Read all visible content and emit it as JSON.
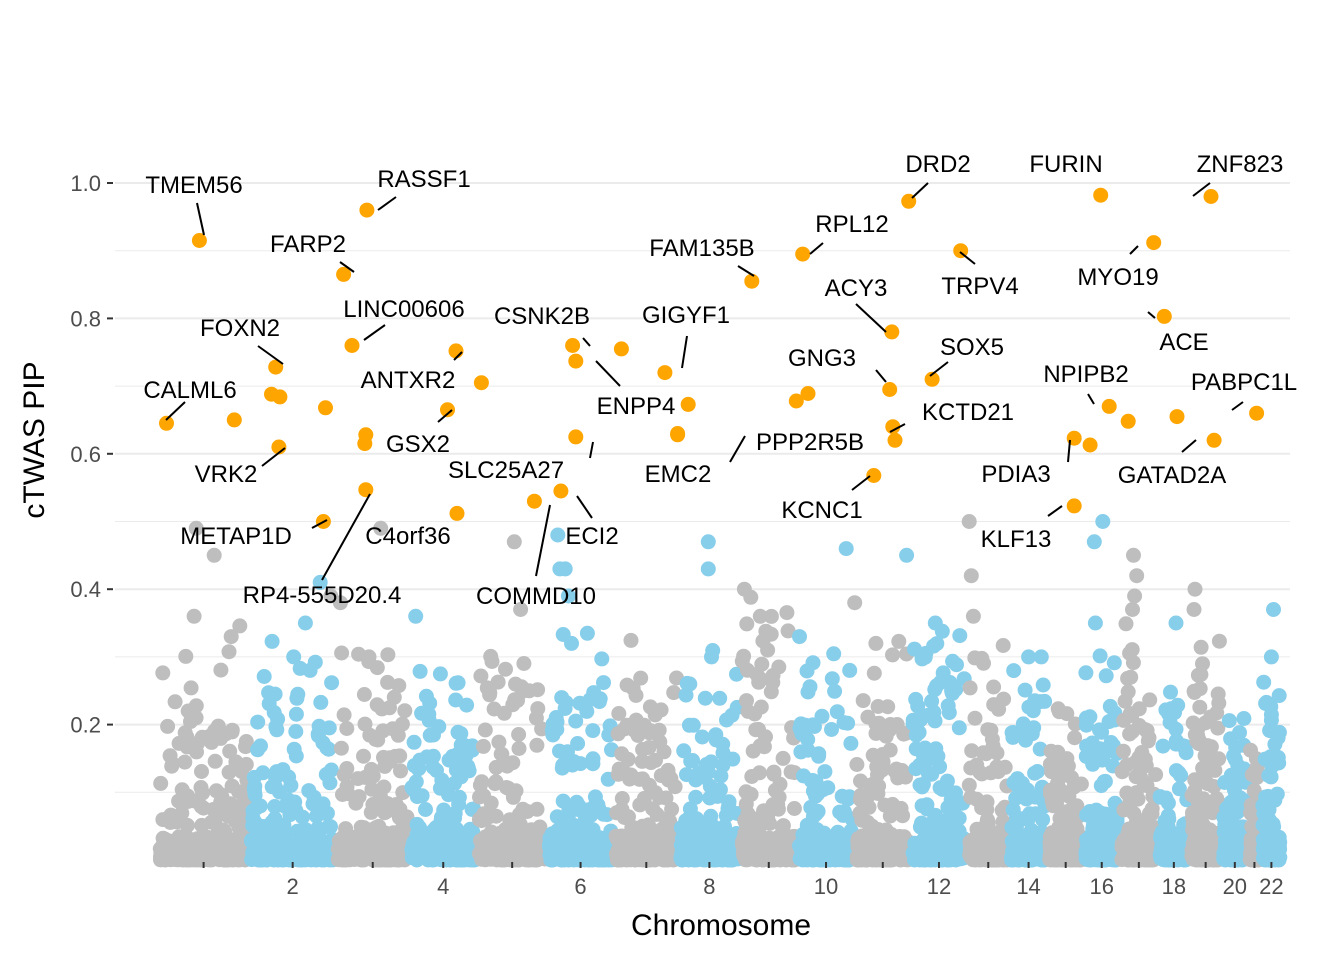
{
  "chart_data": {
    "type": "scatter",
    "title": "",
    "xlabel": "Chromosome",
    "ylabel": "cTWAS PIP",
    "ylim": [
      0,
      1.05
    ],
    "y_ticks": [
      0.2,
      0.4,
      0.6,
      0.8,
      1.0
    ],
    "y_tick_labels": [
      "0.2",
      "0.4",
      "0.6",
      "0.8",
      "1.0"
    ],
    "x_tick_labels": [
      "2",
      "4",
      "6",
      "8",
      "10",
      "12",
      "14",
      "16",
      "18",
      "20",
      "22"
    ],
    "grid": true,
    "legend": "none",
    "colors": {
      "odd_chromosome": "#bebebe",
      "even_chromosome": "#87ceeb",
      "highlight": "#ffa500",
      "gridline": "#ebebeb",
      "leader_line": "#000000"
    },
    "chromosomes": [
      {
        "chr": 1,
        "start": 0.0,
        "end": 8.6,
        "n": 190,
        "max_bg": 0.33
      },
      {
        "chr": 2,
        "start": 8.6,
        "end": 16.8,
        "n": 180,
        "max_bg": 0.3
      },
      {
        "chr": 3,
        "start": 16.8,
        "end": 23.7,
        "n": 160,
        "max_bg": 0.3
      },
      {
        "chr": 4,
        "start": 23.7,
        "end": 30.1,
        "n": 150,
        "max_bg": 0.26
      },
      {
        "chr": 5,
        "start": 30.1,
        "end": 36.7,
        "n": 150,
        "max_bg": 0.32
      },
      {
        "chr": 6,
        "start": 36.7,
        "end": 43.0,
        "n": 160,
        "max_bg": 0.3
      },
      {
        "chr": 7,
        "start": 43.0,
        "end": 49.1,
        "n": 150,
        "max_bg": 0.3
      },
      {
        "chr": 8,
        "start": 49.1,
        "end": 54.9,
        "n": 140,
        "max_bg": 0.3
      },
      {
        "chr": 9,
        "start": 54.9,
        "end": 60.3,
        "n": 140,
        "max_bg": 0.36
      },
      {
        "chr": 10,
        "start": 60.3,
        "end": 65.7,
        "n": 140,
        "max_bg": 0.3
      },
      {
        "chr": 11,
        "start": 65.7,
        "end": 71.0,
        "n": 150,
        "max_bg": 0.3
      },
      {
        "chr": 12,
        "start": 71.0,
        "end": 76.3,
        "n": 150,
        "max_bg": 0.35
      },
      {
        "chr": 13,
        "start": 76.3,
        "end": 80.3,
        "n": 100,
        "max_bg": 0.32
      },
      {
        "chr": 14,
        "start": 80.3,
        "end": 83.9,
        "n": 110,
        "max_bg": 0.25
      },
      {
        "chr": 15,
        "start": 83.9,
        "end": 87.3,
        "n": 110,
        "max_bg": 0.22
      },
      {
        "chr": 16,
        "start": 87.3,
        "end": 90.7,
        "n": 120,
        "max_bg": 0.28
      },
      {
        "chr": 17,
        "start": 90.7,
        "end": 94.3,
        "n": 130,
        "max_bg": 0.32
      },
      {
        "chr": 18,
        "start": 94.3,
        "end": 97.3,
        "n": 90,
        "max_bg": 0.24
      },
      {
        "chr": 19,
        "start": 97.3,
        "end": 100.3,
        "n": 120,
        "max_bg": 0.3
      },
      {
        "chr": 20,
        "start": 100.3,
        "end": 102.8,
        "n": 90,
        "max_bg": 0.24
      },
      {
        "chr": 21,
        "start": 102.8,
        "end": 104.0,
        "n": 50,
        "max_bg": 0.2
      },
      {
        "chr": 22,
        "start": 104.0,
        "end": 106.0,
        "n": 80,
        "max_bg": 0.28
      }
    ],
    "background_tail": [
      {
        "x": 3.6,
        "y": 0.49,
        "chr": 1
      },
      {
        "x": 5.3,
        "y": 0.45,
        "chr": 1
      },
      {
        "x": 3.4,
        "y": 0.36,
        "chr": 1
      },
      {
        "x": 6.9,
        "y": 0.33,
        "chr": 1
      },
      {
        "x": 12.8,
        "y": 0.3,
        "chr": 2
      },
      {
        "x": 13.9,
        "y": 0.35,
        "chr": 2
      },
      {
        "x": 15.3,
        "y": 0.41,
        "chr": 2
      },
      {
        "x": 16.3,
        "y": 0.39,
        "chr": 3
      },
      {
        "x": 17.2,
        "y": 0.38,
        "chr": 3
      },
      {
        "x": 19.9,
        "y": 0.3,
        "chr": 3
      },
      {
        "x": 21.0,
        "y": 0.49,
        "chr": 3
      },
      {
        "x": 24.3,
        "y": 0.36,
        "chr": 4
      },
      {
        "x": 33.6,
        "y": 0.47,
        "chr": 5
      },
      {
        "x": 34.2,
        "y": 0.37,
        "chr": 5
      },
      {
        "x": 37.7,
        "y": 0.48,
        "chr": 6
      },
      {
        "x": 37.9,
        "y": 0.43,
        "chr": 6
      },
      {
        "x": 38.4,
        "y": 0.43,
        "chr": 6
      },
      {
        "x": 38.7,
        "y": 0.39,
        "chr": 6
      },
      {
        "x": 39.0,
        "y": 0.32,
        "chr": 6
      },
      {
        "x": 51.9,
        "y": 0.47,
        "chr": 8
      },
      {
        "x": 51.9,
        "y": 0.43,
        "chr": 8
      },
      {
        "x": 52.2,
        "y": 0.3,
        "chr": 8
      },
      {
        "x": 55.3,
        "y": 0.4,
        "chr": 9
      },
      {
        "x": 56.8,
        "y": 0.36,
        "chr": 9
      },
      {
        "x": 60.5,
        "y": 0.33,
        "chr": 10
      },
      {
        "x": 64.9,
        "y": 0.46,
        "chr": 10
      },
      {
        "x": 65.7,
        "y": 0.38,
        "chr": 11
      },
      {
        "x": 67.7,
        "y": 0.32,
        "chr": 11
      },
      {
        "x": 70.6,
        "y": 0.45,
        "chr": 12
      },
      {
        "x": 73.3,
        "y": 0.35,
        "chr": 12
      },
      {
        "x": 76.5,
        "y": 0.5,
        "chr": 13
      },
      {
        "x": 76.7,
        "y": 0.42,
        "chr": 13
      },
      {
        "x": 76.9,
        "y": 0.36,
        "chr": 13
      },
      {
        "x": 82.1,
        "y": 0.3,
        "chr": 14
      },
      {
        "x": 83.3,
        "y": 0.3,
        "chr": 14
      },
      {
        "x": 88.3,
        "y": 0.47,
        "chr": 16
      },
      {
        "x": 88.4,
        "y": 0.35,
        "chr": 16
      },
      {
        "x": 89.1,
        "y": 0.5,
        "chr": 16
      },
      {
        "x": 92.0,
        "y": 0.45,
        "chr": 17
      },
      {
        "x": 92.3,
        "y": 0.42,
        "chr": 17
      },
      {
        "x": 92.1,
        "y": 0.39,
        "chr": 17
      },
      {
        "x": 91.9,
        "y": 0.37,
        "chr": 17
      },
      {
        "x": 96.0,
        "y": 0.35,
        "chr": 18
      },
      {
        "x": 97.8,
        "y": 0.4,
        "chr": 19
      },
      {
        "x": 97.7,
        "y": 0.37,
        "chr": 19
      },
      {
        "x": 98.5,
        "y": 0.29,
        "chr": 19
      },
      {
        "x": 105.2,
        "y": 0.37,
        "chr": 22
      },
      {
        "x": 105.0,
        "y": 0.3,
        "chr": 22
      }
    ],
    "highlighted_genes": [
      {
        "gene": "TMEM56",
        "x": 3.9,
        "y": 0.915
      },
      {
        "gene": "RASSF1",
        "x": 19.7,
        "y": 0.96
      },
      {
        "gene": "FARP2",
        "x": 17.5,
        "y": 0.865
      },
      {
        "gene": "LINC00606",
        "x": 18.3,
        "y": 0.76
      },
      {
        "gene": "FOXN2",
        "x": 11.1,
        "y": 0.728
      },
      {
        "gene": "CALML6",
        "x": 0.8,
        "y": 0.645
      },
      {
        "gene": "VRK2",
        "x": 11.4,
        "y": 0.61
      },
      {
        "gene": "METAP1D",
        "x": 15.6,
        "y": 0.5
      },
      {
        "gene": "RP4-555D20.4",
        "x": 19.6,
        "y": 0.547
      },
      {
        "gene": "C4orf36",
        "x": 28.2,
        "y": 0.512
      },
      {
        "gene": "ANTXR2",
        "x": 28.1,
        "y": 0.752
      },
      {
        "gene": "GSX2",
        "x": 27.3,
        "y": 0.665
      },
      {
        "gene": "SLC25A27",
        "x": 39.4,
        "y": 0.625
      },
      {
        "gene": "CSNK2B",
        "x": 39.1,
        "y": 0.76
      },
      {
        "gene": "ENPP4",
        "x": 39.4,
        "y": 0.737
      },
      {
        "gene": "COMMD10",
        "x": 35.5,
        "y": 0.53
      },
      {
        "gene": "ECI2",
        "x": 38.0,
        "y": 0.545
      },
      {
        "gene": "GIGYF1",
        "x": 47.8,
        "y": 0.72
      },
      {
        "gene": "FAM135B",
        "x": 56.0,
        "y": 0.855
      },
      {
        "gene": "EMC2",
        "x": 49.0,
        "y": 0.63
      },
      {
        "gene": "PPP2R5B",
        "x": 49.0,
        "y": 0.628
      },
      {
        "gene": "RPL12",
        "x": 60.8,
        "y": 0.895
      },
      {
        "gene": "ACY3",
        "x": 69.2,
        "y": 0.78
      },
      {
        "gene": "GNG3",
        "x": 69.0,
        "y": 0.695
      },
      {
        "gene": "KCTD21",
        "x": 69.3,
        "y": 0.64
      },
      {
        "gene": "KCNC1",
        "x": 67.5,
        "y": 0.568
      },
      {
        "gene": "DRD2",
        "x": 70.8,
        "y": 0.973
      },
      {
        "gene": "TRPV4",
        "x": 75.7,
        "y": 0.9
      },
      {
        "gene": "SOX5",
        "x": 73.0,
        "y": 0.71
      },
      {
        "gene": "FURIN",
        "x": 88.9,
        "y": 0.982
      },
      {
        "gene": "MYO19",
        "x": 93.9,
        "y": 0.912
      },
      {
        "gene": "ACE",
        "x": 94.9,
        "y": 0.803
      },
      {
        "gene": "NPIPB2",
        "x": 89.7,
        "y": 0.67
      },
      {
        "gene": "PDIA3",
        "x": 86.4,
        "y": 0.623
      },
      {
        "gene": "KLF13",
        "x": 86.4,
        "y": 0.523
      },
      {
        "gene": "ZNF823",
        "x": 99.3,
        "y": 0.98
      },
      {
        "gene": "PABPC1L",
        "x": 103.6,
        "y": 0.66
      },
      {
        "gene": "GATAD2A",
        "x": 99.6,
        "y": 0.62
      }
    ],
    "unlabeled_highlights": [
      {
        "x": 10.7,
        "y": 0.688
      },
      {
        "x": 11.5,
        "y": 0.684
      },
      {
        "x": 7.2,
        "y": 0.65
      },
      {
        "x": 15.8,
        "y": 0.668
      },
      {
        "x": 19.5,
        "y": 0.615
      },
      {
        "x": 19.6,
        "y": 0.628
      },
      {
        "x": 30.5,
        "y": 0.705
      },
      {
        "x": 43.7,
        "y": 0.755
      },
      {
        "x": 50.0,
        "y": 0.673
      },
      {
        "x": 60.2,
        "y": 0.678
      },
      {
        "x": 61.3,
        "y": 0.689
      },
      {
        "x": 69.5,
        "y": 0.62
      },
      {
        "x": 87.9,
        "y": 0.613
      },
      {
        "x": 91.5,
        "y": 0.648
      },
      {
        "x": 96.1,
        "y": 0.655
      }
    ]
  }
}
